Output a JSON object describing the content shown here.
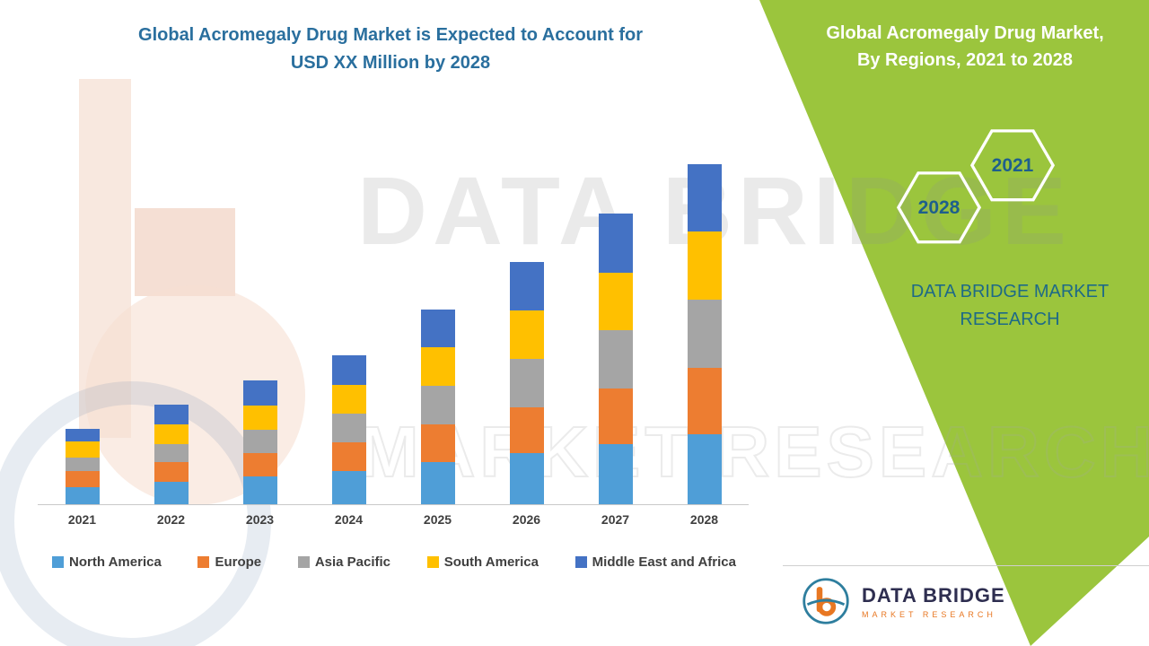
{
  "title": {
    "line1": "Global Acromegaly Drug Market is Expected to Account for",
    "line2": "USD XX Million by 2028"
  },
  "panel": {
    "title_line1": "Global Acromegaly Drug Market,",
    "title_line2": "By Regions, 2021 to 2028",
    "hexagons": [
      {
        "label": "2028"
      },
      {
        "label": "2021"
      }
    ],
    "brand_line1": "DATA BRIDGE MARKET",
    "brand_line2": "RESEARCH",
    "green_color": "#9BC53D",
    "accent_text_color": "#1E6A87"
  },
  "watermark": {
    "line1": "DATA BRIDGE",
    "line2": "MARKET RESEARCH"
  },
  "logo": {
    "name": "DATA BRIDGE",
    "subtitle": "MARKET RESEARCH"
  },
  "chart_data": {
    "type": "bar",
    "stacked": true,
    "categories": [
      "2021",
      "2022",
      "2023",
      "2024",
      "2025",
      "2026",
      "2027",
      "2028"
    ],
    "series": [
      {
        "name": "North America",
        "color": "#4F9ED7",
        "values": [
          19,
          25,
          31,
          37,
          47,
          57,
          67,
          78
        ]
      },
      {
        "name": "Europe",
        "color": "#ED7D31",
        "values": [
          18,
          22,
          26,
          32,
          42,
          51,
          62,
          74
        ]
      },
      {
        "name": "Asia Pacific",
        "color": "#A5A5A5",
        "values": [
          15,
          20,
          26,
          32,
          43,
          54,
          65,
          76
        ]
      },
      {
        "name": "South America",
        "color": "#FFC000",
        "values": [
          18,
          22,
          27,
          32,
          43,
          54,
          64,
          76
        ]
      },
      {
        "name": "Middle East and Africa",
        "color": "#4472C4",
        "values": [
          14,
          22,
          28,
          33,
          42,
          54,
          66,
          75
        ]
      }
    ],
    "title": "Global Acromegaly Drug Market is Expected to Account for USD XX Million by 2028",
    "xlabel": "",
    "ylabel": "",
    "y_axis_visible": false,
    "grid": false,
    "legend_position": "bottom",
    "value_unit": "relative (USD XX Million not disclosed)"
  }
}
